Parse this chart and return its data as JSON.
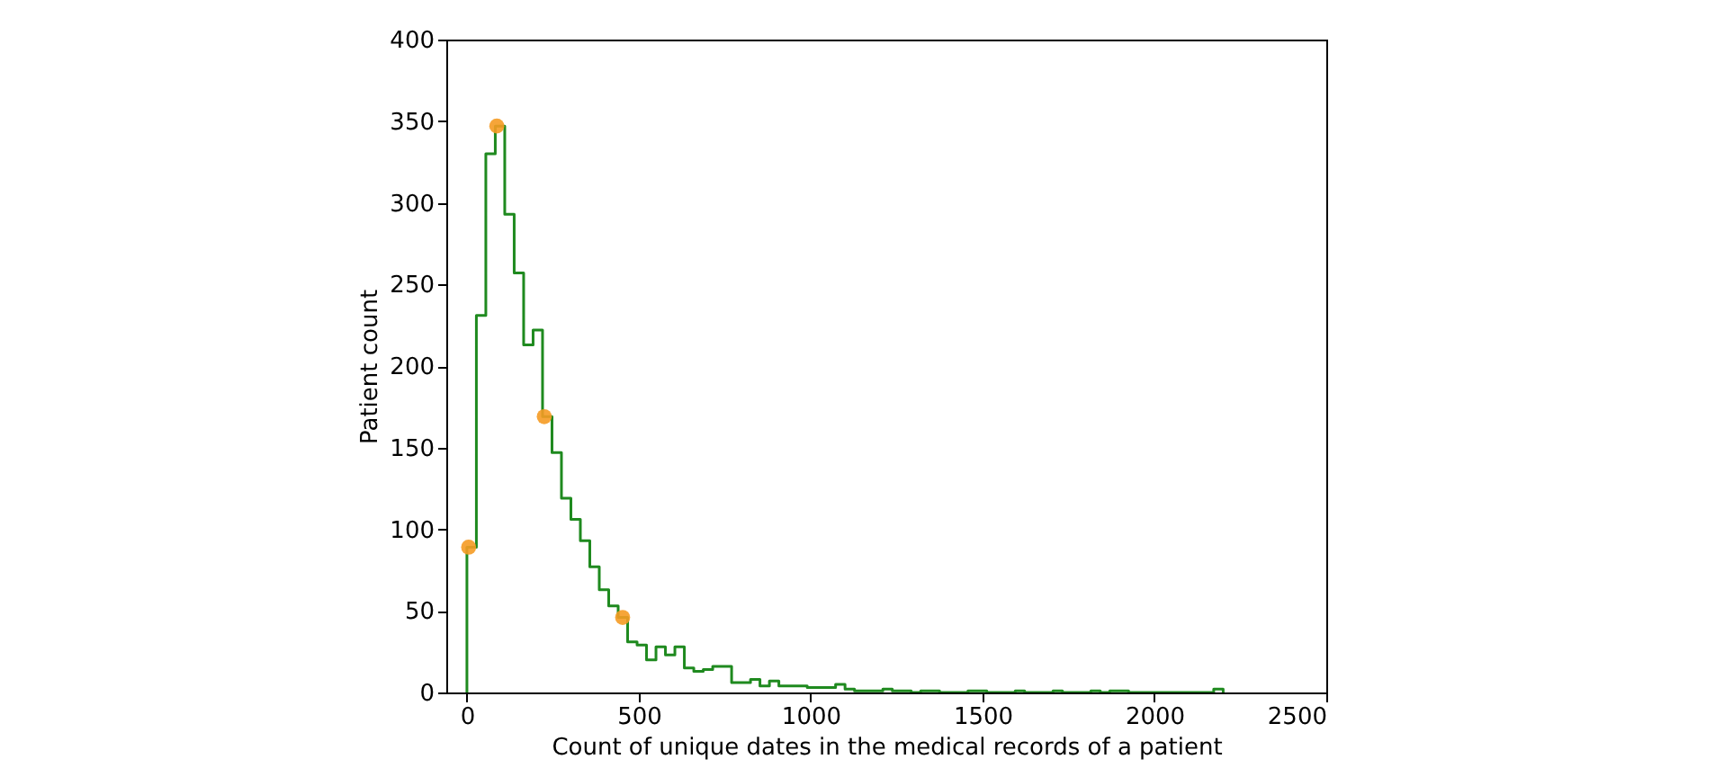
{
  "chart_data": {
    "type": "histogram",
    "xlabel": "Count of unique dates in the medical records of a patient",
    "ylabel": "Patient count",
    "xlim": [
      -60,
      2500
    ],
    "xticks": [
      0,
      500,
      1000,
      1500,
      2000,
      2500
    ],
    "ylim": [
      0,
      400
    ],
    "yticks": [
      0,
      50,
      100,
      150,
      200,
      250,
      300,
      350,
      400
    ],
    "grid": false,
    "series": [
      {
        "color": "#1f8a1f",
        "bins": [
          0,
          27.5,
          55,
          82.5,
          110,
          137.5,
          165,
          192.5,
          220,
          247.5,
          275,
          302.5,
          330,
          357.5,
          385,
          412.5,
          440,
          467.5,
          495,
          522.5,
          550,
          577.5,
          605,
          632.5,
          660,
          687.5,
          715,
          742.5,
          770,
          797.5,
          825,
          852.5,
          880,
          907.5,
          935,
          962.5,
          990,
          1017.5,
          1045,
          1072.5,
          1100,
          1127.5,
          1155,
          1182.5,
          1210,
          1237.5,
          1265,
          1292.5,
          1320,
          1347.5,
          1375,
          1402.5,
          1430,
          1457.5,
          1485,
          1512.5,
          1540,
          1567.5,
          1595,
          1622.5,
          1650,
          1677.5,
          1705,
          1732.5,
          1760,
          1787.5,
          1815,
          1842.5,
          1870,
          1897.5,
          1925,
          1952.5,
          1980,
          2007.5,
          2035,
          2062.5,
          2090,
          2117.5,
          2145,
          2172.5,
          2200
        ],
        "values": [
          89,
          231,
          330,
          347,
          293,
          257,
          213,
          222,
          169,
          147,
          119,
          106,
          93,
          77,
          63,
          53,
          46,
          31,
          29,
          20,
          28,
          23,
          28,
          15,
          13,
          14,
          16,
          16,
          6,
          6,
          8,
          4,
          7,
          4,
          4,
          4,
          3,
          3,
          3,
          5,
          2,
          1,
          1,
          1,
          2,
          1,
          1,
          0,
          1,
          1,
          0,
          0,
          0,
          1,
          1,
          0,
          0,
          0,
          1,
          0,
          0,
          0,
          1,
          0,
          0,
          0,
          1,
          0,
          1,
          1,
          0,
          0,
          0,
          0,
          0,
          0,
          0,
          0,
          0,
          2
        ]
      },
      {
        "type": "scatter",
        "color": "#f59b23",
        "marker": "circle",
        "x": [
          5,
          87,
          225,
          453
        ],
        "values": [
          89,
          347,
          169,
          46
        ]
      }
    ]
  }
}
